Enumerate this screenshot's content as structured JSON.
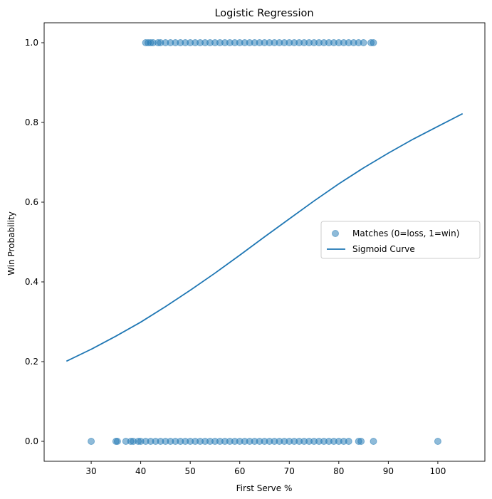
{
  "chart_data": {
    "type": "scatter",
    "title": "Logistic Regression",
    "xlabel": "First Serve %",
    "ylabel": "Win Probability",
    "xlim": [
      20.5,
      109.5
    ],
    "ylim": [
      -0.05,
      1.05
    ],
    "xticks": [
      30,
      40,
      50,
      60,
      70,
      80,
      90,
      100
    ],
    "yticks": [
      0.0,
      0.2,
      0.4,
      0.6,
      0.8,
      1.0
    ],
    "ytick_labels": [
      "0.0",
      "0.2",
      "0.4",
      "0.6",
      "0.8",
      "1.0"
    ],
    "grid": false,
    "legend_position": "center-right",
    "point_color": "#1f77b4",
    "line_color": "#1f77b4",
    "series": [
      {
        "name": "Matches (0=loss, 1=win)",
        "kind": "scatter",
        "points": [
          {
            "x": 41,
            "y": 1
          },
          {
            "x": 41.5,
            "y": 1
          },
          {
            "x": 42,
            "y": 1
          },
          {
            "x": 42.5,
            "y": 1
          },
          {
            "x": 43.5,
            "y": 1
          },
          {
            "x": 44,
            "y": 1
          },
          {
            "x": 45,
            "y": 1
          },
          {
            "x": 46,
            "y": 1
          },
          {
            "x": 47,
            "y": 1
          },
          {
            "x": 48,
            "y": 1
          },
          {
            "x": 49,
            "y": 1
          },
          {
            "x": 50,
            "y": 1
          },
          {
            "x": 51,
            "y": 1
          },
          {
            "x": 52,
            "y": 1
          },
          {
            "x": 53,
            "y": 1
          },
          {
            "x": 54,
            "y": 1
          },
          {
            "x": 55,
            "y": 1
          },
          {
            "x": 56,
            "y": 1
          },
          {
            "x": 57,
            "y": 1
          },
          {
            "x": 58,
            "y": 1
          },
          {
            "x": 59,
            "y": 1
          },
          {
            "x": 60,
            "y": 1
          },
          {
            "x": 61,
            "y": 1
          },
          {
            "x": 62,
            "y": 1
          },
          {
            "x": 63,
            "y": 1
          },
          {
            "x": 64,
            "y": 1
          },
          {
            "x": 65,
            "y": 1
          },
          {
            "x": 66,
            "y": 1
          },
          {
            "x": 67,
            "y": 1
          },
          {
            "x": 68,
            "y": 1
          },
          {
            "x": 69,
            "y": 1
          },
          {
            "x": 70,
            "y": 1
          },
          {
            "x": 71,
            "y": 1
          },
          {
            "x": 72,
            "y": 1
          },
          {
            "x": 73,
            "y": 1
          },
          {
            "x": 74,
            "y": 1
          },
          {
            "x": 75,
            "y": 1
          },
          {
            "x": 76,
            "y": 1
          },
          {
            "x": 77,
            "y": 1
          },
          {
            "x": 78,
            "y": 1
          },
          {
            "x": 79,
            "y": 1
          },
          {
            "x": 80,
            "y": 1
          },
          {
            "x": 81,
            "y": 1
          },
          {
            "x": 82,
            "y": 1
          },
          {
            "x": 83,
            "y": 1
          },
          {
            "x": 84,
            "y": 1
          },
          {
            "x": 85,
            "y": 1
          },
          {
            "x": 86.5,
            "y": 1
          },
          {
            "x": 87,
            "y": 1
          },
          {
            "x": 30,
            "y": 0
          },
          {
            "x": 35,
            "y": 0
          },
          {
            "x": 35.3,
            "y": 0
          },
          {
            "x": 37,
            "y": 0
          },
          {
            "x": 38,
            "y": 0
          },
          {
            "x": 38.5,
            "y": 0
          },
          {
            "x": 39.5,
            "y": 0
          },
          {
            "x": 40,
            "y": 0
          },
          {
            "x": 41,
            "y": 0
          },
          {
            "x": 42,
            "y": 0
          },
          {
            "x": 43,
            "y": 0
          },
          {
            "x": 44,
            "y": 0
          },
          {
            "x": 45,
            "y": 0
          },
          {
            "x": 46,
            "y": 0
          },
          {
            "x": 47,
            "y": 0
          },
          {
            "x": 48,
            "y": 0
          },
          {
            "x": 49,
            "y": 0
          },
          {
            "x": 50,
            "y": 0
          },
          {
            "x": 51,
            "y": 0
          },
          {
            "x": 52,
            "y": 0
          },
          {
            "x": 53,
            "y": 0
          },
          {
            "x": 54,
            "y": 0
          },
          {
            "x": 55,
            "y": 0
          },
          {
            "x": 56,
            "y": 0
          },
          {
            "x": 57,
            "y": 0
          },
          {
            "x": 58,
            "y": 0
          },
          {
            "x": 59,
            "y": 0
          },
          {
            "x": 60,
            "y": 0
          },
          {
            "x": 61,
            "y": 0
          },
          {
            "x": 62,
            "y": 0
          },
          {
            "x": 63,
            "y": 0
          },
          {
            "x": 64,
            "y": 0
          },
          {
            "x": 65,
            "y": 0
          },
          {
            "x": 66,
            "y": 0
          },
          {
            "x": 67,
            "y": 0
          },
          {
            "x": 68,
            "y": 0
          },
          {
            "x": 69,
            "y": 0
          },
          {
            "x": 70,
            "y": 0
          },
          {
            "x": 71,
            "y": 0
          },
          {
            "x": 72,
            "y": 0
          },
          {
            "x": 73,
            "y": 0
          },
          {
            "x": 74,
            "y": 0
          },
          {
            "x": 75,
            "y": 0
          },
          {
            "x": 76,
            "y": 0
          },
          {
            "x": 77,
            "y": 0
          },
          {
            "x": 78,
            "y": 0
          },
          {
            "x": 79,
            "y": 0
          },
          {
            "x": 80,
            "y": 0
          },
          {
            "x": 81,
            "y": 0
          },
          {
            "x": 82,
            "y": 0
          },
          {
            "x": 84,
            "y": 0
          },
          {
            "x": 84.5,
            "y": 0
          },
          {
            "x": 87,
            "y": 0
          },
          {
            "x": 100,
            "y": 0
          }
        ]
      },
      {
        "name": "Sigmoid Curve",
        "kind": "line",
        "x": [
          25,
          30,
          35,
          40,
          45,
          50,
          55,
          60,
          65,
          70,
          75,
          80,
          85,
          90,
          95,
          100,
          105
        ],
        "y": [
          0.201,
          0.231,
          0.264,
          0.299,
          0.338,
          0.379,
          0.422,
          0.467,
          0.513,
          0.558,
          0.603,
          0.646,
          0.686,
          0.723,
          0.758,
          0.79,
          0.822
        ]
      }
    ]
  }
}
